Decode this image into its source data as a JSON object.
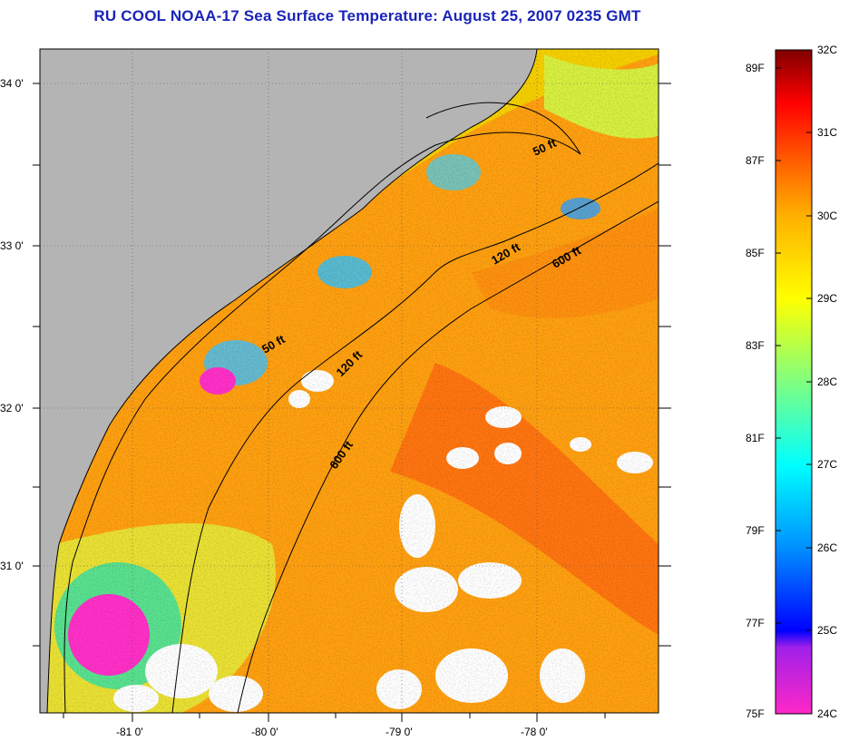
{
  "title": "RU COOL  NOAA-17  Sea Surface Temperature:  August 25, 2007 0235 GMT",
  "map": {
    "lat_labels": [
      "34 0'",
      "33 0'",
      "32 0'",
      "31 0'"
    ],
    "lon_labels": [
      "-81 0'",
      "-80 0'",
      "-79 0'",
      "-78 0'"
    ],
    "contours": [
      {
        "label": "50 ft"
      },
      {
        "label": "120 ft"
      },
      {
        "label": "600 ft"
      },
      {
        "label": "50 ft"
      },
      {
        "label": "120 ft"
      },
      {
        "label": "600 ft"
      }
    ],
    "colors": {
      "land": "#b4b4b4",
      "cloud": "#ffffff",
      "title": "#1a24b8"
    }
  },
  "colorbar": {
    "fahrenheit": [
      "89F",
      "87F",
      "85F",
      "83F",
      "81F",
      "79F",
      "77F",
      "75F"
    ],
    "celsius": [
      "32C",
      "31C",
      "30C",
      "29C",
      "28C",
      "27C",
      "26C",
      "25C",
      "24C"
    ],
    "range_c": [
      24,
      32
    ],
    "stops": [
      "#ff28c8",
      "#8020e0",
      "#0000ff",
      "#0090ff",
      "#00ffff",
      "#80ff80",
      "#ffff00",
      "#ffb000",
      "#ff6000",
      "#ff0000",
      "#800000"
    ]
  }
}
